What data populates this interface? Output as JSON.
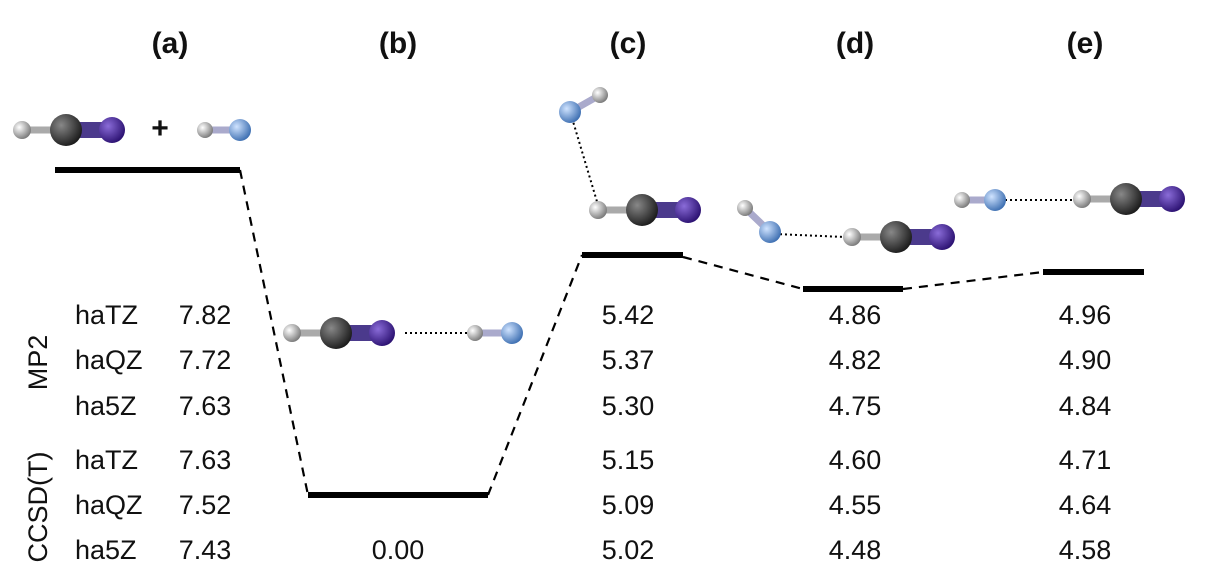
{
  "plus": "+",
  "methods": [
    {
      "name": "MP2",
      "basis_sets": [
        "haTZ",
        "haQZ",
        "ha5Z"
      ]
    },
    {
      "name": "CCSD(T)",
      "basis_sets": [
        "haTZ",
        "haQZ",
        "ha5Z"
      ]
    }
  ],
  "columns": [
    {
      "label": "(a)",
      "energies": [
        "7.82",
        "7.72",
        "7.63",
        "7.63",
        "7.52",
        "7.43"
      ]
    },
    {
      "label": "(b)",
      "energies": [
        "0.00"
      ]
    },
    {
      "label": "(c)",
      "energies": [
        "5.42",
        "5.37",
        "5.30",
        "5.15",
        "5.09",
        "5.02"
      ]
    },
    {
      "label": "(d)",
      "energies": [
        "4.86",
        "4.82",
        "4.75",
        "4.60",
        "4.55",
        "4.48"
      ]
    },
    {
      "label": "(e)",
      "energies": [
        "4.96",
        "4.90",
        "4.84",
        "4.71",
        "4.64",
        "4.58"
      ]
    }
  ]
}
